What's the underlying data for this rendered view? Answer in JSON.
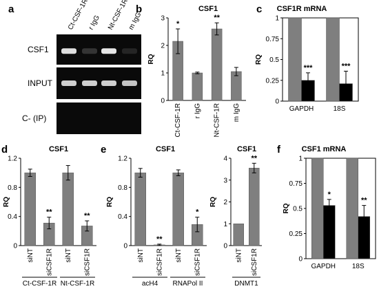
{
  "panel_letters": [
    "a",
    "b",
    "c",
    "d",
    "e",
    "f"
  ],
  "gel": {
    "lanes": [
      "Ct-CSF-1R",
      "r IgG",
      "Nt-CSF-1R",
      "m IgG"
    ],
    "rows": [
      "CSF1",
      "INPUT",
      "C- (IP)"
    ],
    "band_intensity": [
      [
        0.92,
        0.18,
        0.95,
        0.12
      ],
      [
        0.85,
        0.85,
        0.85,
        0.8
      ],
      [
        0,
        0,
        0,
        0
      ]
    ]
  },
  "colors": {
    "bar": "#7f7f7f",
    "bar_alt": "#000000",
    "gel_bg": "#0a0a0a",
    "band": "#f2f2f2"
  },
  "chart_data": [
    {
      "id": "b",
      "type": "bar",
      "title": "CSF1",
      "ylabel": "RQ",
      "ylim": [
        0,
        3
      ],
      "yticks": [
        "0",
        "1",
        "2",
        "3"
      ],
      "categories": [
        "Ct-CSF-1R",
        "r IgG",
        "Nt-CSF-1R",
        "m IgG"
      ],
      "values": [
        2.15,
        1.0,
        2.6,
        1.05
      ],
      "errors": [
        0.45,
        0.03,
        0.22,
        0.15
      ],
      "annotations": [
        "*",
        "",
        "**",
        ""
      ]
    },
    {
      "id": "c",
      "type": "bar",
      "title": "CSF1R mRNA",
      "ylabel": "RQ",
      "ylim": [
        0,
        1
      ],
      "yticks": [
        "0",
        "0.25",
        "0.5",
        "0.75",
        "1"
      ],
      "groups": [
        "GAPDH",
        "18S"
      ],
      "series": [
        {
          "values": [
            1.0,
            1.0
          ],
          "errors": [
            0,
            0
          ],
          "annotations": [
            "",
            ""
          ]
        },
        {
          "values": [
            0.25,
            0.21
          ],
          "errors": [
            0.09,
            0.15
          ],
          "annotations": [
            "***",
            "***"
          ]
        }
      ]
    },
    {
      "id": "d",
      "type": "bar",
      "title": "CSF1",
      "ylabel": "RQ",
      "ylim": [
        0,
        1.2
      ],
      "yticks": [
        "0",
        "0.4",
        "0.8",
        "1.2"
      ],
      "categories": [
        "siNT",
        "siCSF1R",
        "siNT",
        "siCSF1R"
      ],
      "values": [
        1.0,
        0.31,
        1.0,
        0.27
      ],
      "errors": [
        0.05,
        0.08,
        0.1,
        0.07
      ],
      "annotations": [
        "",
        "**",
        "",
        "**"
      ],
      "groups": [
        {
          "label": "Ct-CSF-1R",
          "members": [
            0,
            1
          ]
        },
        {
          "label": "Nt-CSF-1R",
          "members": [
            2,
            3
          ]
        }
      ]
    },
    {
      "id": "e1",
      "type": "bar",
      "title": "CSF1",
      "ylabel": "RQ",
      "ylim": [
        0,
        1.2
      ],
      "yticks": [
        "0",
        "0.4",
        "0.8",
        "1.2"
      ],
      "categories": [
        "siNT",
        "siCSF1R",
        "siNT",
        "siCSF1R"
      ],
      "values": [
        1.0,
        0.01,
        1.0,
        0.29
      ],
      "errors": [
        0.06,
        0.01,
        0.04,
        0.1
      ],
      "annotations": [
        "",
        "**",
        "",
        "*"
      ],
      "groups": [
        {
          "label": "acH4",
          "members": [
            0,
            1
          ]
        },
        {
          "label": "RNAPol II",
          "members": [
            2,
            3
          ]
        }
      ]
    },
    {
      "id": "e2",
      "type": "bar",
      "title": "CSF1",
      "ylabel": "RQ",
      "ylim": [
        0,
        4
      ],
      "yticks": [
        "0",
        "1",
        "2",
        "3",
        "4"
      ],
      "categories": [
        "siNT",
        "siCSF1R"
      ],
      "values": [
        1.0,
        3.55
      ],
      "errors": [
        0,
        0.22
      ],
      "annotations": [
        "",
        "**"
      ],
      "groups": [
        {
          "label": "DNMT1",
          "members": [
            0,
            1
          ]
        }
      ]
    },
    {
      "id": "f",
      "type": "bar",
      "title": "CSF1 mRNA",
      "ylabel": "RQ",
      "ylim": [
        0,
        1
      ],
      "yticks": [
        "0",
        "0.25",
        "0.5",
        "0.75",
        "1"
      ],
      "groups": [
        "GAPDH",
        "18S"
      ],
      "series": [
        {
          "values": [
            1.0,
            1.0
          ],
          "errors": [
            0,
            0
          ],
          "annotations": [
            "",
            ""
          ]
        },
        {
          "values": [
            0.53,
            0.42
          ],
          "errors": [
            0.06,
            0.11
          ],
          "annotations": [
            "*",
            "**"
          ]
        }
      ]
    }
  ]
}
